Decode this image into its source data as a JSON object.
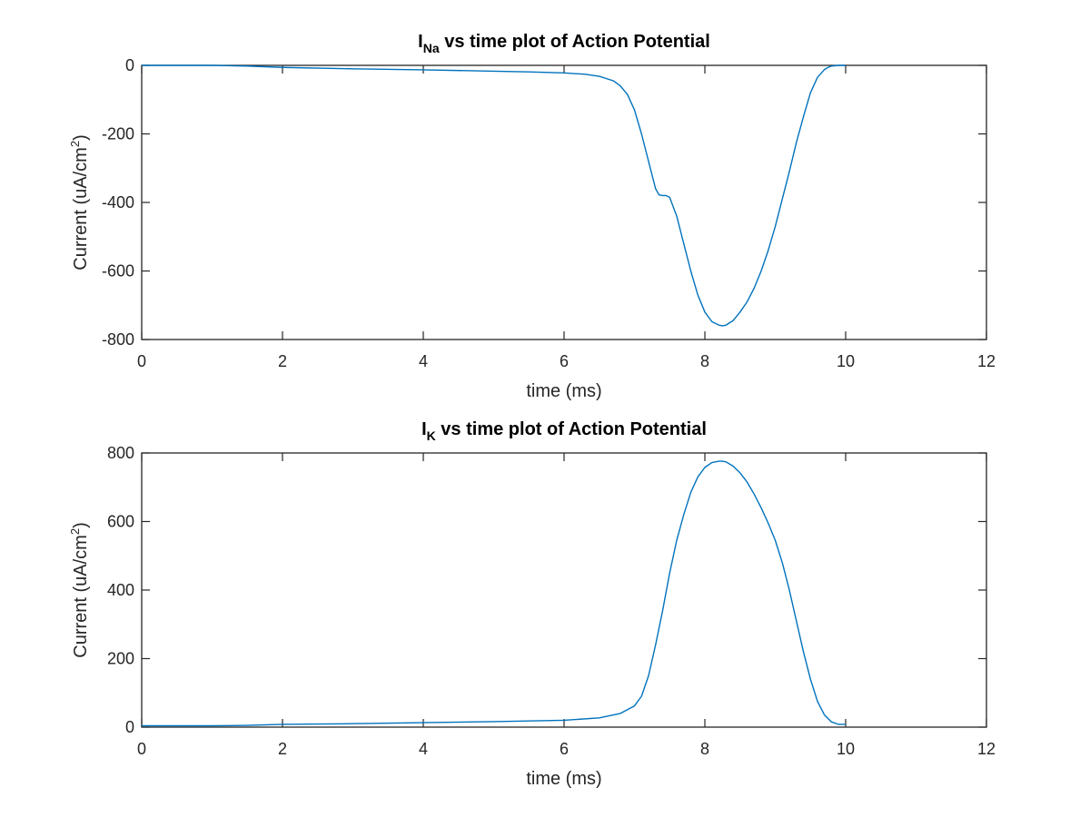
{
  "chart_data": [
    {
      "type": "line",
      "title_main": "I",
      "title_sub": "Na",
      "title_rest": " vs time plot of Action Potential",
      "xlabel": "time (ms)",
      "ylabel_main": "Current (uA/cm",
      "ylabel_sup": "2",
      "ylabel_end": ")",
      "xlim": [
        0,
        12
      ],
      "ylim": [
        -800,
        0
      ],
      "xticks": [
        0,
        2,
        4,
        6,
        8,
        10,
        12
      ],
      "yticks": [
        -800,
        -600,
        -400,
        -200,
        0
      ],
      "xtick_labels": [
        "0",
        "2",
        "4",
        "6",
        "8",
        "10",
        "12"
      ],
      "ytick_labels": [
        "-800",
        "-600",
        "-400",
        "-200",
        "0"
      ],
      "grid": false,
      "legend": "none",
      "color": "#0072BD",
      "x": [
        0,
        1,
        1.5,
        2,
        3,
        4,
        5,
        5.5,
        6,
        6.3,
        6.5,
        6.7,
        6.8,
        6.9,
        7.0,
        7.1,
        7.2,
        7.25,
        7.3,
        7.35,
        7.4,
        7.45,
        7.5,
        7.6,
        7.7,
        7.8,
        7.9,
        8.0,
        8.1,
        8.2,
        8.25,
        8.3,
        8.4,
        8.5,
        8.6,
        8.7,
        8.8,
        8.9,
        9.0,
        9.1,
        9.2,
        9.3,
        9.4,
        9.5,
        9.6,
        9.7,
        9.75,
        9.8,
        9.85,
        9.9,
        10.0
      ],
      "y": [
        0,
        0,
        -2,
        -6,
        -10,
        -13,
        -17,
        -19,
        -22,
        -26,
        -32,
        -45,
        -60,
        -85,
        -130,
        -200,
        -280,
        -320,
        -360,
        -378,
        -380,
        -380,
        -385,
        -440,
        -520,
        -600,
        -670,
        -720,
        -748,
        -758,
        -760,
        -758,
        -745,
        -720,
        -690,
        -650,
        -600,
        -540,
        -470,
        -390,
        -310,
        -225,
        -150,
        -80,
        -35,
        -12,
        -6,
        -2,
        -1,
        0,
        0
      ]
    },
    {
      "type": "line",
      "title_main": "I",
      "title_sub": "K",
      "title_rest": " vs time plot of Action Potential",
      "xlabel": "time (ms)",
      "ylabel_main": "Current (uA/cm",
      "ylabel_sup": "2",
      "ylabel_end": ")",
      "xlim": [
        0,
        12
      ],
      "ylim": [
        0,
        800
      ],
      "xticks": [
        0,
        2,
        4,
        6,
        8,
        10,
        12
      ],
      "yticks": [
        0,
        200,
        400,
        600,
        800
      ],
      "xtick_labels": [
        "0",
        "2",
        "4",
        "6",
        "8",
        "10",
        "12"
      ],
      "ytick_labels": [
        "0",
        "200",
        "400",
        "600",
        "800"
      ],
      "grid": false,
      "legend": "none",
      "color": "#0072BD",
      "x": [
        0,
        1,
        1.5,
        2,
        3,
        4,
        5,
        6,
        6.5,
        6.8,
        7.0,
        7.1,
        7.2,
        7.3,
        7.4,
        7.5,
        7.6,
        7.7,
        7.8,
        7.9,
        8.0,
        8.1,
        8.2,
        8.25,
        8.3,
        8.4,
        8.5,
        8.6,
        8.7,
        8.8,
        8.9,
        9.0,
        9.1,
        9.2,
        9.3,
        9.4,
        9.5,
        9.6,
        9.7,
        9.8,
        9.9,
        10.0
      ],
      "y": [
        4,
        4,
        5,
        8,
        10,
        13,
        16,
        20,
        27,
        40,
        62,
        90,
        150,
        240,
        340,
        450,
        545,
        620,
        685,
        730,
        758,
        772,
        776,
        776,
        774,
        762,
        742,
        715,
        680,
        640,
        595,
        545,
        480,
        400,
        310,
        220,
        140,
        75,
        35,
        15,
        8,
        8
      ]
    }
  ]
}
